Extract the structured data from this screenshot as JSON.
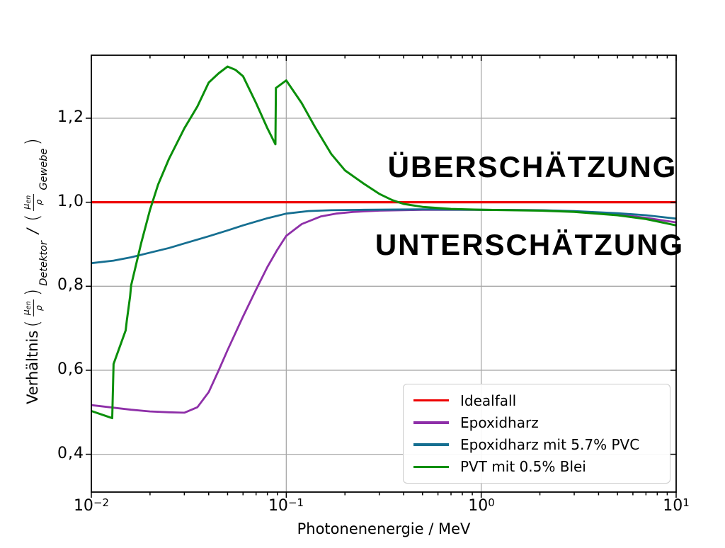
{
  "chart_data": {
    "type": "line",
    "title": "",
    "xlabel": "Photonenenergie / MeV",
    "ylabel": {
      "prefix": "Verhältnis",
      "open_paren": "(",
      "close_paren": ")",
      "mu": "μ",
      "mu_sub": "en",
      "rho": "ρ",
      "detektor": "Detektor",
      "slash": "/",
      "gewebe": "Gewebe"
    },
    "xscale": "log",
    "xlim": [
      0.01,
      10
    ],
    "ylim": [
      0.31,
      1.35
    ],
    "grid": true,
    "grid_color": "#a8a8a8",
    "xticks": {
      "values": [
        0.01,
        0.1,
        1,
        10
      ],
      "labels": [
        {
          "base": "10",
          "exp": "−2"
        },
        {
          "base": "10",
          "exp": "−1"
        },
        {
          "base": "10",
          "exp": "0"
        },
        {
          "base": "10",
          "exp": "1"
        }
      ]
    },
    "yticks": {
      "values": [
        0.4,
        0.6,
        0.8,
        1.0,
        1.2
      ],
      "labels": [
        "0,4",
        "0,6",
        "0,8",
        "1,0",
        "1,2"
      ]
    },
    "annotations": [
      {
        "text": "ÜBERSCHÄTZUNG",
        "position": "above ideal line"
      },
      {
        "text": "UNTERSCHÄTZUNG",
        "position": "below ideal line"
      }
    ],
    "legend": {
      "position": "lower right"
    },
    "series": [
      {
        "name": "Idealfall",
        "color": "#ee0000",
        "width": 3.2,
        "points": [
          [
            0.01,
            1.0
          ],
          [
            10,
            1.0
          ]
        ]
      },
      {
        "name": "Epoxidharz",
        "color": "#8e2fa8",
        "width": 2.8,
        "points": [
          [
            0.01,
            0.517
          ],
          [
            0.013,
            0.511
          ],
          [
            0.016,
            0.506
          ],
          [
            0.02,
            0.502
          ],
          [
            0.025,
            0.5
          ],
          [
            0.03,
            0.499
          ],
          [
            0.035,
            0.512
          ],
          [
            0.04,
            0.548
          ],
          [
            0.045,
            0.6
          ],
          [
            0.05,
            0.648
          ],
          [
            0.06,
            0.728
          ],
          [
            0.07,
            0.792
          ],
          [
            0.08,
            0.846
          ],
          [
            0.09,
            0.887
          ],
          [
            0.1,
            0.92
          ],
          [
            0.12,
            0.948
          ],
          [
            0.15,
            0.966
          ],
          [
            0.18,
            0.973
          ],
          [
            0.22,
            0.977
          ],
          [
            0.3,
            0.98
          ],
          [
            0.5,
            0.982
          ],
          [
            1.0,
            0.982
          ],
          [
            2.0,
            0.981
          ],
          [
            3.0,
            0.978
          ],
          [
            5.0,
            0.971
          ],
          [
            7.0,
            0.963
          ],
          [
            10,
            0.952
          ]
        ]
      },
      {
        "name": "Epoxidharz mit 5.7% PVC",
        "color": "#166f91",
        "width": 2.8,
        "points": [
          [
            0.01,
            0.855
          ],
          [
            0.013,
            0.861
          ],
          [
            0.016,
            0.869
          ],
          [
            0.02,
            0.88
          ],
          [
            0.025,
            0.891
          ],
          [
            0.03,
            0.902
          ],
          [
            0.04,
            0.919
          ],
          [
            0.05,
            0.933
          ],
          [
            0.06,
            0.945
          ],
          [
            0.08,
            0.962
          ],
          [
            0.1,
            0.973
          ],
          [
            0.13,
            0.979
          ],
          [
            0.17,
            0.981
          ],
          [
            0.25,
            0.982
          ],
          [
            0.5,
            0.983
          ],
          [
            1.0,
            0.982
          ],
          [
            2.0,
            0.981
          ],
          [
            3.0,
            0.979
          ],
          [
            5.0,
            0.974
          ],
          [
            7.0,
            0.969
          ],
          [
            10,
            0.961
          ]
        ]
      },
      {
        "name": "PVT mit 0.5% Blei",
        "color": "#0a8f0a",
        "width": 3.0,
        "points": [
          [
            0.01,
            0.503
          ],
          [
            0.0128,
            0.486
          ],
          [
            0.013,
            0.615
          ],
          [
            0.015,
            0.695
          ],
          [
            0.0152,
            0.718
          ],
          [
            0.0158,
            0.775
          ],
          [
            0.016,
            0.802
          ],
          [
            0.018,
            0.902
          ],
          [
            0.02,
            0.982
          ],
          [
            0.022,
            1.042
          ],
          [
            0.025,
            1.103
          ],
          [
            0.03,
            1.176
          ],
          [
            0.035,
            1.228
          ],
          [
            0.04,
            1.285
          ],
          [
            0.045,
            1.307
          ],
          [
            0.05,
            1.323
          ],
          [
            0.055,
            1.315
          ],
          [
            0.06,
            1.3
          ],
          [
            0.07,
            1.236
          ],
          [
            0.08,
            1.176
          ],
          [
            0.088,
            1.138
          ],
          [
            0.0885,
            1.272
          ],
          [
            0.1,
            1.29
          ],
          [
            0.12,
            1.236
          ],
          [
            0.14,
            1.18
          ],
          [
            0.17,
            1.115
          ],
          [
            0.2,
            1.076
          ],
          [
            0.25,
            1.044
          ],
          [
            0.3,
            1.02
          ],
          [
            0.35,
            1.005
          ],
          [
            0.4,
            0.996
          ],
          [
            0.5,
            0.989
          ],
          [
            0.7,
            0.984
          ],
          [
            1.0,
            0.982
          ],
          [
            2.0,
            0.98
          ],
          [
            3.0,
            0.977
          ],
          [
            5.0,
            0.969
          ],
          [
            7.0,
            0.96
          ],
          [
            10,
            0.945
          ]
        ]
      }
    ]
  }
}
